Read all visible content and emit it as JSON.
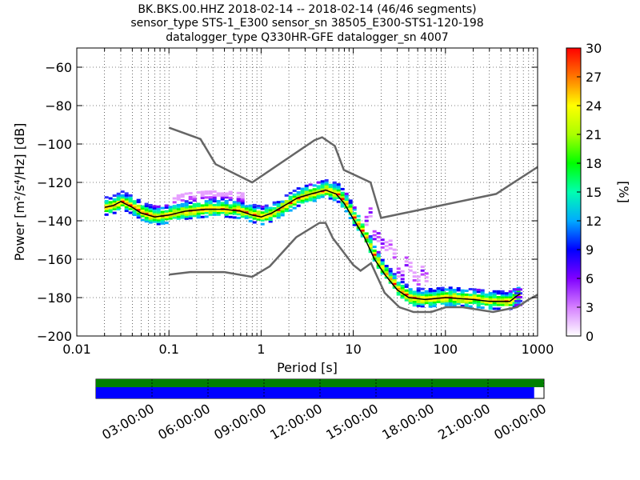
{
  "title_lines": [
    "BK.BKS.00.HHZ   2018-02-14 -- 2018-02-14  (46/46 segments)",
    "sensor_type STS-1_E300 sensor_sn 38505_E300-STS1-120-198",
    "datalogger_type Q330HR-GFE datalogger_sn 4007"
  ],
  "chart_data": [
    {
      "type": "heatmap",
      "name": "probabilistic-power-spectral-density",
      "x_label_prefix": "Period [s]",
      "xlabel": "Period [s]",
      "ylabel": "Power [m²/s⁴/Hz] [dB]",
      "x_scale": "log",
      "xlim": [
        0.01,
        1000
      ],
      "ylim": [
        -200,
        -50
      ],
      "x_ticks": [
        0.01,
        0.1,
        1,
        10,
        100,
        1000
      ],
      "x_tick_labels": [
        "0.01",
        "0.1",
        "1",
        "10",
        "100",
        "1000"
      ],
      "y_ticks": [
        -200,
        -180,
        -160,
        -140,
        -120,
        -100,
        -80,
        -60
      ],
      "y_tick_labels": [
        "−200",
        "−180",
        "−160",
        "−140",
        "−120",
        "−100",
        "−80",
        "−60"
      ],
      "grid": true,
      "colorbar": {
        "label": "[%]",
        "min": 0,
        "max": 30,
        "ticks": [
          0,
          3,
          6,
          9,
          12,
          15,
          18,
          21,
          24,
          27,
          30
        ]
      },
      "noise_model_high": [
        [
          0.1,
          -91.5
        ],
        [
          0.22,
          -97.4
        ],
        [
          0.32,
          -110.5
        ],
        [
          0.8,
          -120
        ],
        [
          3.8,
          -98
        ],
        [
          4.6,
          -96.5
        ],
        [
          6.3,
          -101
        ],
        [
          7.9,
          -113.5
        ],
        [
          15.4,
          -120
        ],
        [
          20,
          -138.5
        ],
        [
          354.8,
          -126
        ],
        [
          1000,
          -112
        ]
      ],
      "noise_model_low": [
        [
          0.1,
          -168
        ],
        [
          0.17,
          -166.7
        ],
        [
          0.4,
          -166.7
        ],
        [
          0.8,
          -169.2
        ],
        [
          1.24,
          -163.7
        ],
        [
          2.4,
          -148.6
        ],
        [
          4.3,
          -141.1
        ],
        [
          5,
          -141.1
        ],
        [
          6,
          -149
        ],
        [
          10,
          -163
        ],
        [
          12,
          -166
        ],
        [
          15.6,
          -162.1
        ],
        [
          21.9,
          -177.5
        ],
        [
          31.6,
          -185
        ],
        [
          45,
          -187.5
        ],
        [
          70,
          -187.5
        ],
        [
          101,
          -185
        ],
        [
          154,
          -185
        ],
        [
          328,
          -187.5
        ],
        [
          600,
          -185
        ],
        [
          800,
          -181
        ],
        [
          1000,
          -178.5
        ]
      ],
      "mean_curve": [
        [
          0.02,
          -133
        ],
        [
          0.025,
          -132
        ],
        [
          0.03,
          -130
        ],
        [
          0.04,
          -133
        ],
        [
          0.05,
          -136
        ],
        [
          0.07,
          -138
        ],
        [
          0.1,
          -137
        ],
        [
          0.15,
          -135
        ],
        [
          0.25,
          -134
        ],
        [
          0.4,
          -134
        ],
        [
          0.6,
          -135
        ],
        [
          0.8,
          -137
        ],
        [
          1,
          -138
        ],
        [
          1.3,
          -136
        ],
        [
          1.8,
          -132
        ],
        [
          2.5,
          -128
        ],
        [
          3.5,
          -126
        ],
        [
          5,
          -124
        ],
        [
          6.5,
          -126
        ],
        [
          8,
          -131
        ],
        [
          10,
          -139
        ],
        [
          13,
          -148
        ],
        [
          17,
          -160
        ],
        [
          22,
          -168
        ],
        [
          30,
          -176
        ],
        [
          40,
          -180
        ],
        [
          60,
          -181
        ],
        [
          100,
          -180
        ],
        [
          200,
          -181
        ],
        [
          300,
          -182
        ],
        [
          500,
          -182
        ],
        [
          600,
          -179
        ],
        [
          650,
          -178
        ]
      ]
    },
    {
      "type": "bar",
      "name": "data-availability",
      "tick_labels": [
        "03:00:00",
        "06:00:00",
        "09:00:00",
        "12:00:00",
        "15:00:00",
        "18:00:00",
        "21:00:00",
        "00:00:00"
      ],
      "coverage_fraction": 0.978,
      "colors": {
        "coverage": "#008000",
        "segments": "#0000ff"
      }
    }
  ]
}
